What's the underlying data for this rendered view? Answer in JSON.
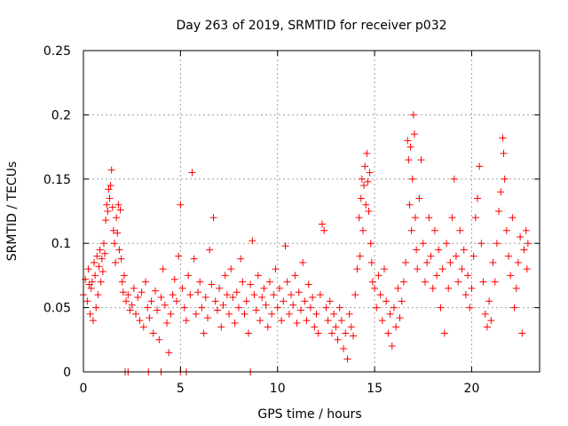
{
  "chart_data": {
    "type": "scatter",
    "title": "Day 263 of 2019, SRMTID for receiver p032",
    "xlabel": "GPS time / hours",
    "ylabel": "SRMTID / TECUs",
    "xlim": [
      0,
      23.5
    ],
    "ylim": [
      0,
      0.25
    ],
    "xticks": [
      0,
      5,
      10,
      15,
      20
    ],
    "xtick_labels": [
      "0",
      "5",
      "10",
      "15",
      "20"
    ],
    "yticks": [
      0,
      0.05,
      0.1,
      0.15,
      0.2,
      0.25
    ],
    "ytick_labels": [
      "0",
      "0.05",
      "0.1",
      "0.15",
      "0.2",
      "0.25"
    ],
    "grid": true,
    "marker": "+",
    "color": "#ff0000",
    "series": [
      {
        "name": "SRMTID",
        "points": [
          [
            0.0,
            0.06
          ],
          [
            0.1,
            0.072
          ],
          [
            0.2,
            0.055
          ],
          [
            0.25,
            0.08
          ],
          [
            0.3,
            0.068
          ],
          [
            0.35,
            0.045
          ],
          [
            0.4,
            0.065
          ],
          [
            0.45,
            0.07
          ],
          [
            0.5,
            0.04
          ],
          [
            0.55,
            0.085
          ],
          [
            0.6,
            0.075
          ],
          [
            0.65,
            0.05
          ],
          [
            0.7,
            0.09
          ],
          [
            0.75,
            0.06
          ],
          [
            0.8,
            0.082
          ],
          [
            0.85,
            0.095
          ],
          [
            0.9,
            0.07
          ],
          [
            0.95,
            0.088
          ],
          [
            1.0,
            0.078
          ],
          [
            1.05,
            0.1
          ],
          [
            1.1,
            0.092
          ],
          [
            1.15,
            0.118
          ],
          [
            1.2,
            0.13
          ],
          [
            1.25,
            0.125
          ],
          [
            1.3,
            0.142
          ],
          [
            1.35,
            0.135
          ],
          [
            1.4,
            0.145
          ],
          [
            1.45,
            0.157
          ],
          [
            1.5,
            0.128
          ],
          [
            1.55,
            0.11
          ],
          [
            1.6,
            0.1
          ],
          [
            1.65,
            0.085
          ],
          [
            1.7,
            0.12
          ],
          [
            1.75,
            0.108
          ],
          [
            1.8,
            0.13
          ],
          [
            1.85,
            0.095
          ],
          [
            1.9,
            0.126
          ],
          [
            1.95,
            0.088
          ],
          [
            2.0,
            0.07
          ],
          [
            2.05,
            0.062
          ],
          [
            2.1,
            0.075
          ],
          [
            2.2,
            0.055
          ],
          [
            2.3,
            0.06
          ],
          [
            2.4,
            0.048
          ],
          [
            2.5,
            0.052
          ],
          [
            2.6,
            0.065
          ],
          [
            2.7,
            0.045
          ],
          [
            2.8,
            0.058
          ],
          [
            2.9,
            0.04
          ],
          [
            3.0,
            0.062
          ],
          [
            3.1,
            0.035
          ],
          [
            3.2,
            0.07
          ],
          [
            3.3,
            0.05
          ],
          [
            3.4,
            0.042
          ],
          [
            3.5,
            0.055
          ],
          [
            3.6,
            0.03
          ],
          [
            3.7,
            0.063
          ],
          [
            3.8,
            0.048
          ],
          [
            3.9,
            0.025
          ],
          [
            4.0,
            0.058
          ],
          [
            4.1,
            0.08
          ],
          [
            4.2,
            0.052
          ],
          [
            4.3,
            0.038
          ],
          [
            4.4,
            0.015
          ],
          [
            4.5,
            0.045
          ],
          [
            4.6,
            0.06
          ],
          [
            4.7,
            0.072
          ],
          [
            4.8,
            0.055
          ],
          [
            4.9,
            0.09
          ],
          [
            5.0,
            0.13
          ],
          [
            5.1,
            0.065
          ],
          [
            5.2,
            0.05
          ],
          [
            5.3,
            0.04
          ],
          [
            5.4,
            0.075
          ],
          [
            5.5,
            0.06
          ],
          [
            5.6,
            0.155
          ],
          [
            5.7,
            0.088
          ],
          [
            5.8,
            0.045
          ],
          [
            5.9,
            0.062
          ],
          [
            6.0,
            0.07
          ],
          [
            6.1,
            0.05
          ],
          [
            6.2,
            0.03
          ],
          [
            6.3,
            0.058
          ],
          [
            6.4,
            0.042
          ],
          [
            6.5,
            0.095
          ],
          [
            6.6,
            0.068
          ],
          [
            6.7,
            0.12
          ],
          [
            6.8,
            0.055
          ],
          [
            6.9,
            0.048
          ],
          [
            7.0,
            0.065
          ],
          [
            7.1,
            0.035
          ],
          [
            7.2,
            0.052
          ],
          [
            7.3,
            0.075
          ],
          [
            7.4,
            0.06
          ],
          [
            7.5,
            0.045
          ],
          [
            7.6,
            0.08
          ],
          [
            7.7,
            0.058
          ],
          [
            7.8,
            0.038
          ],
          [
            7.9,
            0.062
          ],
          [
            8.0,
            0.05
          ],
          [
            8.1,
            0.088
          ],
          [
            8.2,
            0.07
          ],
          [
            8.3,
            0.045
          ],
          [
            8.4,
            0.055
          ],
          [
            8.5,
            0.03
          ],
          [
            8.6,
            0.068
          ],
          [
            8.7,
            0.102
          ],
          [
            8.8,
            0.06
          ],
          [
            8.9,
            0.048
          ],
          [
            9.0,
            0.075
          ],
          [
            9.1,
            0.04
          ],
          [
            9.2,
            0.058
          ],
          [
            9.3,
            0.065
          ],
          [
            9.4,
            0.052
          ],
          [
            9.5,
            0.035
          ],
          [
            9.6,
            0.07
          ],
          [
            9.7,
            0.045
          ],
          [
            9.8,
            0.06
          ],
          [
            9.9,
            0.08
          ],
          [
            10.0,
            0.05
          ],
          [
            10.1,
            0.065
          ],
          [
            10.2,
            0.04
          ],
          [
            10.3,
            0.055
          ],
          [
            10.4,
            0.098
          ],
          [
            10.5,
            0.07
          ],
          [
            10.6,
            0.045
          ],
          [
            10.7,
            0.06
          ],
          [
            10.8,
            0.052
          ],
          [
            10.9,
            0.075
          ],
          [
            11.0,
            0.038
          ],
          [
            11.1,
            0.062
          ],
          [
            11.2,
            0.048
          ],
          [
            11.3,
            0.085
          ],
          [
            11.4,
            0.055
          ],
          [
            11.5,
            0.04
          ],
          [
            11.6,
            0.068
          ],
          [
            11.7,
            0.05
          ],
          [
            11.8,
            0.058
          ],
          [
            11.9,
            0.035
          ],
          [
            12.0,
            0.045
          ],
          [
            12.1,
            0.03
          ],
          [
            12.2,
            0.06
          ],
          [
            12.3,
            0.115
          ],
          [
            12.4,
            0.11
          ],
          [
            12.5,
            0.05
          ],
          [
            12.6,
            0.04
          ],
          [
            12.7,
            0.055
          ],
          [
            12.8,
            0.03
          ],
          [
            12.9,
            0.045
          ],
          [
            13.0,
            0.035
          ],
          [
            13.1,
            0.025
          ],
          [
            13.2,
            0.05
          ],
          [
            13.3,
            0.04
          ],
          [
            13.4,
            0.018
          ],
          [
            13.5,
            0.03
          ],
          [
            13.6,
            0.01
          ],
          [
            13.7,
            0.045
          ],
          [
            13.8,
            0.035
          ],
          [
            13.9,
            0.028
          ],
          [
            14.0,
            0.06
          ],
          [
            14.1,
            0.08
          ],
          [
            14.2,
            0.12
          ],
          [
            14.25,
            0.09
          ],
          [
            14.3,
            0.135
          ],
          [
            14.35,
            0.15
          ],
          [
            14.4,
            0.11
          ],
          [
            14.45,
            0.145
          ],
          [
            14.5,
            0.16
          ],
          [
            14.55,
            0.13
          ],
          [
            14.6,
            0.17
          ],
          [
            14.65,
            0.148
          ],
          [
            14.7,
            0.125
          ],
          [
            14.75,
            0.155
          ],
          [
            14.8,
            0.1
          ],
          [
            14.85,
            0.085
          ],
          [
            14.9,
            0.07
          ],
          [
            15.0,
            0.065
          ],
          [
            15.1,
            0.05
          ],
          [
            15.2,
            0.075
          ],
          [
            15.3,
            0.06
          ],
          [
            15.4,
            0.04
          ],
          [
            15.5,
            0.08
          ],
          [
            15.6,
            0.055
          ],
          [
            15.7,
            0.03
          ],
          [
            15.8,
            0.045
          ],
          [
            15.9,
            0.02
          ],
          [
            16.0,
            0.05
          ],
          [
            16.1,
            0.035
          ],
          [
            16.2,
            0.065
          ],
          [
            16.3,
            0.042
          ],
          [
            16.4,
            0.055
          ],
          [
            16.5,
            0.07
          ],
          [
            16.6,
            0.085
          ],
          [
            16.7,
            0.18
          ],
          [
            16.75,
            0.165
          ],
          [
            16.8,
            0.13
          ],
          [
            16.85,
            0.175
          ],
          [
            16.9,
            0.11
          ],
          [
            16.95,
            0.15
          ],
          [
            17.0,
            0.2
          ],
          [
            17.05,
            0.185
          ],
          [
            17.1,
            0.12
          ],
          [
            17.15,
            0.095
          ],
          [
            17.2,
            0.08
          ],
          [
            17.3,
            0.135
          ],
          [
            17.4,
            0.165
          ],
          [
            17.5,
            0.1
          ],
          [
            17.6,
            0.07
          ],
          [
            17.7,
            0.085
          ],
          [
            17.8,
            0.12
          ],
          [
            17.9,
            0.09
          ],
          [
            18.0,
            0.065
          ],
          [
            18.1,
            0.11
          ],
          [
            18.2,
            0.075
          ],
          [
            18.3,
            0.095
          ],
          [
            18.4,
            0.05
          ],
          [
            18.5,
            0.08
          ],
          [
            18.6,
            0.03
          ],
          [
            18.7,
            0.1
          ],
          [
            18.8,
            0.065
          ],
          [
            18.9,
            0.085
          ],
          [
            19.0,
            0.12
          ],
          [
            19.1,
            0.15
          ],
          [
            19.2,
            0.09
          ],
          [
            19.3,
            0.07
          ],
          [
            19.4,
            0.11
          ],
          [
            19.5,
            0.08
          ],
          [
            19.6,
            0.095
          ],
          [
            19.7,
            0.06
          ],
          [
            19.8,
            0.075
          ],
          [
            19.9,
            0.05
          ],
          [
            20.0,
            0.065
          ],
          [
            20.1,
            0.09
          ],
          [
            20.2,
            0.12
          ],
          [
            20.3,
            0.135
          ],
          [
            20.4,
            0.16
          ],
          [
            20.5,
            0.1
          ],
          [
            20.6,
            0.07
          ],
          [
            20.7,
            0.045
          ],
          [
            20.8,
            0.035
          ],
          [
            20.9,
            0.055
          ],
          [
            21.0,
            0.04
          ],
          [
            21.1,
            0.085
          ],
          [
            21.2,
            0.07
          ],
          [
            21.3,
            0.1
          ],
          [
            21.4,
            0.125
          ],
          [
            21.5,
            0.14
          ],
          [
            21.6,
            0.182
          ],
          [
            21.65,
            0.17
          ],
          [
            21.7,
            0.15
          ],
          [
            21.8,
            0.11
          ],
          [
            21.9,
            0.09
          ],
          [
            22.0,
            0.075
          ],
          [
            22.1,
            0.12
          ],
          [
            22.2,
            0.05
          ],
          [
            22.3,
            0.065
          ],
          [
            22.4,
            0.085
          ],
          [
            22.5,
            0.105
          ],
          [
            22.6,
            0.03
          ],
          [
            22.7,
            0.095
          ],
          [
            22.8,
            0.11
          ],
          [
            22.85,
            0.08
          ],
          [
            22.9,
            0.1
          ],
          [
            2.15,
            0.0
          ],
          [
            2.3,
            0.0
          ],
          [
            3.35,
            0.0
          ],
          [
            4.0,
            0.0
          ],
          [
            5.0,
            0.0
          ],
          [
            5.3,
            0.0
          ],
          [
            8.6,
            0.0
          ]
        ]
      }
    ]
  }
}
